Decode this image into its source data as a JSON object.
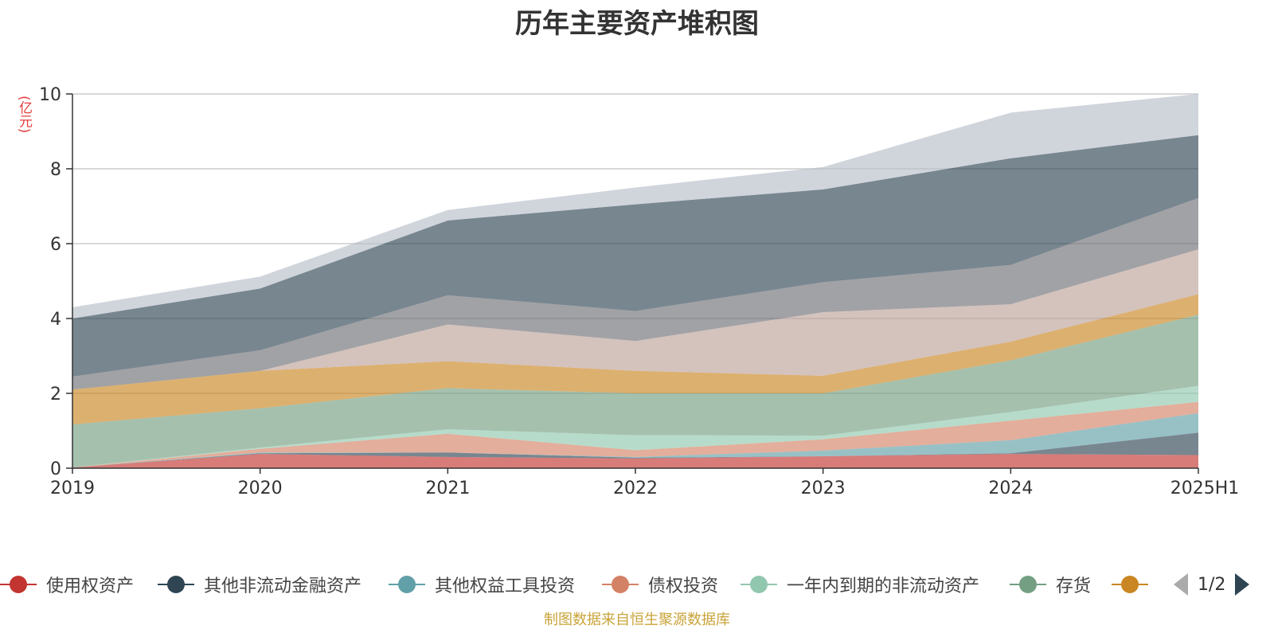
{
  "chart_data": {
    "type": "area",
    "stacked": true,
    "title": "历年主要资产堆积图",
    "unit": "(亿元)",
    "x": [
      "2019",
      "2020",
      "2021",
      "2022",
      "2023",
      "2024",
      "2025H1"
    ],
    "ylim": [
      0,
      10
    ],
    "yticks": [
      0,
      2,
      4,
      6,
      8,
      10
    ],
    "grid": true,
    "legend_position": "bottom",
    "series": [
      {
        "name": "使用权资产",
        "color": "#c23531",
        "values": [
          0.02,
          0.38,
          0.3,
          0.26,
          0.32,
          0.38,
          0.35
        ]
      },
      {
        "name": "其他非流动金融资产",
        "color": "#2f4554",
        "values": [
          0.0,
          0.02,
          0.12,
          0.02,
          0.0,
          0.02,
          0.6
        ]
      },
      {
        "name": "其他权益工具投资",
        "color": "#61a0a8",
        "values": [
          0.0,
          0.02,
          0.0,
          0.02,
          0.15,
          0.35,
          0.52
        ]
      },
      {
        "name": "债权投资",
        "color": "#d48265",
        "values": [
          0.0,
          0.1,
          0.5,
          0.18,
          0.3,
          0.52,
          0.3
        ]
      },
      {
        "name": "一年内到期的非流动资产",
        "color": "#91c7ae",
        "values": [
          0.0,
          0.03,
          0.12,
          0.4,
          0.1,
          0.23,
          0.43
        ]
      },
      {
        "name": "存货",
        "color": "#749f83",
        "values": [
          1.15,
          1.05,
          1.1,
          1.12,
          1.13,
          1.38,
          1.9
        ]
      },
      {
        "name": "",
        "color": "#ca8622",
        "values": [
          0.93,
          1.0,
          0.72,
          0.6,
          0.47,
          0.5,
          0.55
        ]
      },
      {
        "name": "",
        "color": "#bda29a",
        "values": [
          0.0,
          0.0,
          0.98,
          0.8,
          1.7,
          1.0,
          1.2
        ]
      },
      {
        "name": "",
        "color": "#6e7074",
        "values": [
          0.35,
          0.55,
          0.78,
          0.8,
          0.8,
          1.05,
          1.37
        ]
      },
      {
        "name": "",
        "color": "#2f4554",
        "values": [
          1.55,
          1.65,
          2.0,
          2.85,
          2.48,
          2.85,
          1.68
        ]
      },
      {
        "name": "",
        "color": "#b7bec9",
        "values": [
          0.3,
          0.32,
          0.28,
          0.45,
          0.6,
          1.22,
          1.1
        ]
      }
    ]
  },
  "legend_count": 7,
  "pager": {
    "text": "1/2"
  },
  "source_note": "制图数据来自恒生聚源数据库"
}
